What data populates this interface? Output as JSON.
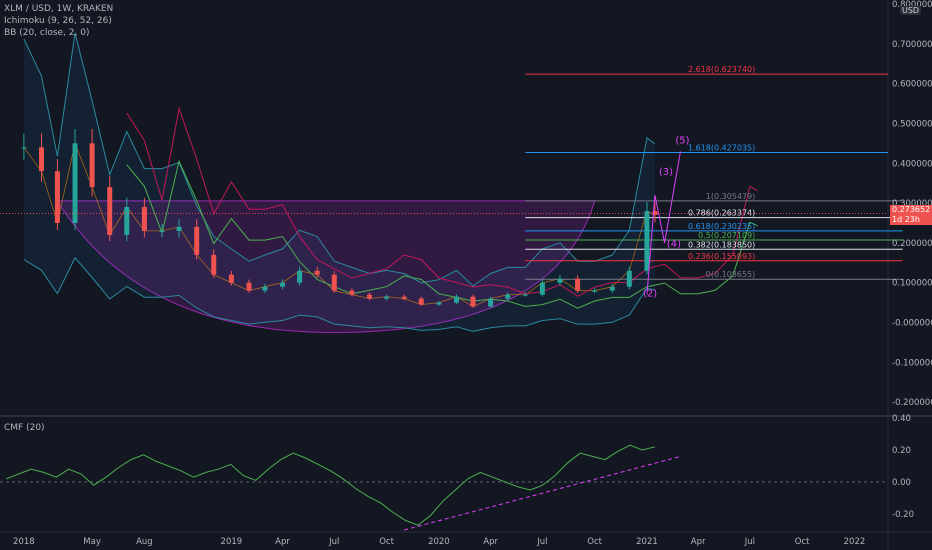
{
  "header": {
    "symbol_line": "XLM / USD, 1W, KRAKEN",
    "indicator_1": "Ichimoku (9, 26, 52, 26)",
    "indicator_2": "BB (20, close, 2, 0)"
  },
  "currency_badge": "USD",
  "price_badge": {
    "price": "0.273652",
    "countdown": "1d 23h",
    "color": "#ef5350"
  },
  "cmf_label": "CMF (20)",
  "colors": {
    "background": "#131722",
    "up": "#26a69a",
    "down": "#ef5350",
    "bb": "#2a8aa0",
    "ichimoku_span": "#c2185b",
    "cmf": "#4caf50",
    "trend": "#e040fb",
    "fib_blue": "#2196f3",
    "fib_red": "#f23645"
  },
  "chart_data": [
    {
      "type": "candlestick",
      "title": "XLM / USD, 1W, KRAKEN",
      "xlabel": "",
      "ylabel": "",
      "ylim": [
        -0.27,
        0.8
      ],
      "y_ticks": [
        "0.800000",
        "0.700000",
        "0.600000",
        "0.500000",
        "0.400000",
        "0.300000",
        "0.200000",
        "0.100000",
        "-0.000000",
        "-0.100000",
        "-0.200000"
      ],
      "x_ticks": [
        "2018",
        "May",
        "Aug",
        "2019",
        "Apr",
        "Jul",
        "Oct",
        "2020",
        "Apr",
        "Jul",
        "Oct",
        "2021",
        "Apr",
        "Jul",
        "Oct",
        "2022"
      ],
      "close_series": [
        {
          "date": "2018-01",
          "value": 0.44
        },
        {
          "date": "2018-02",
          "value": 0.38
        },
        {
          "date": "2018-03",
          "value": 0.25
        },
        {
          "date": "2018-04",
          "value": 0.45
        },
        {
          "date": "2018-05",
          "value": 0.34
        },
        {
          "date": "2018-06",
          "value": 0.22
        },
        {
          "date": "2018-07",
          "value": 0.29
        },
        {
          "date": "2018-08",
          "value": 0.23
        },
        {
          "date": "2018-09",
          "value": 0.23
        },
        {
          "date": "2018-10",
          "value": 0.24
        },
        {
          "date": "2018-11",
          "value": 0.17
        },
        {
          "date": "2018-12",
          "value": 0.12
        },
        {
          "date": "2019-01",
          "value": 0.1
        },
        {
          "date": "2019-02",
          "value": 0.08
        },
        {
          "date": "2019-03",
          "value": 0.09
        },
        {
          "date": "2019-04",
          "value": 0.1
        },
        {
          "date": "2019-05",
          "value": 0.13
        },
        {
          "date": "2019-06",
          "value": 0.12
        },
        {
          "date": "2019-07",
          "value": 0.08
        },
        {
          "date": "2019-08",
          "value": 0.07
        },
        {
          "date": "2019-09",
          "value": 0.06
        },
        {
          "date": "2019-10",
          "value": 0.065
        },
        {
          "date": "2019-11",
          "value": 0.06
        },
        {
          "date": "2019-12",
          "value": 0.045
        },
        {
          "date": "2020-01",
          "value": 0.05
        },
        {
          "date": "2020-02",
          "value": 0.065
        },
        {
          "date": "2020-03",
          "value": 0.04
        },
        {
          "date": "2020-04",
          "value": 0.06
        },
        {
          "date": "2020-05",
          "value": 0.07
        },
        {
          "date": "2020-06",
          "value": 0.07
        },
        {
          "date": "2020-07",
          "value": 0.1
        },
        {
          "date": "2020-08",
          "value": 0.11
        },
        {
          "date": "2020-09",
          "value": 0.08
        },
        {
          "date": "2020-10",
          "value": 0.08
        },
        {
          "date": "2020-11",
          "value": 0.09
        },
        {
          "date": "2020-12",
          "value": 0.13
        },
        {
          "date": "2021-01",
          "value": 0.28
        },
        {
          "date": "2021-01-15",
          "value": 0.27
        }
      ],
      "fib_levels": [
        {
          "label": "2.618(0.623740)",
          "value": 0.62374,
          "color": "#f23645"
        },
        {
          "label": "1.618(0.427035)",
          "value": 0.427035,
          "color": "#2196f3"
        },
        {
          "label": "1(0.305479)",
          "value": 0.305479,
          "color": "#787b86"
        },
        {
          "label": "0.786(0.263374)",
          "value": 0.263374,
          "color": "#e0e3eb"
        },
        {
          "label": "0.618(0.230235)",
          "value": 0.230235,
          "color": "#2196f3"
        },
        {
          "label": "0.5(0.207109)",
          "value": 0.207109,
          "color": "#4caf50"
        },
        {
          "label": "0.382(0.183850)",
          "value": 0.18385,
          "color": "#e0e3eb"
        },
        {
          "label": "0.236(0.155093)",
          "value": 0.155093,
          "color": "#f23645"
        },
        {
          "label": "0(0.108655)",
          "value": 0.108655,
          "color": "#787b86"
        }
      ],
      "wave_labels": [
        "(5)",
        "(3)",
        "(4)",
        "(2)"
      ]
    },
    {
      "type": "line",
      "title": "CMF (20)",
      "ylim": [
        -0.3,
        0.4
      ],
      "y_ticks": [
        "0.40",
        "0.20",
        "0.00",
        "-0.20"
      ],
      "series": [
        {
          "values": [
            0.02,
            0.05,
            0.08,
            0.06,
            0.03,
            0.08,
            0.05,
            -0.02,
            0.03,
            0.09,
            0.14,
            0.17,
            0.13,
            0.1,
            0.07,
            0.03,
            0.06,
            0.08,
            0.11,
            0.04,
            0.01,
            0.08,
            0.14,
            0.18,
            0.15,
            0.11,
            0.07,
            0.02,
            -0.04,
            -0.09,
            -0.13,
            -0.19,
            -0.24,
            -0.27,
            -0.21,
            -0.12,
            -0.05,
            0.02,
            0.06,
            0.03,
            0.0,
            -0.03,
            -0.05,
            -0.02,
            0.04,
            0.12,
            0.18,
            0.16,
            0.14,
            0.19,
            0.23,
            0.2,
            0.22
          ]
        }
      ]
    }
  ]
}
